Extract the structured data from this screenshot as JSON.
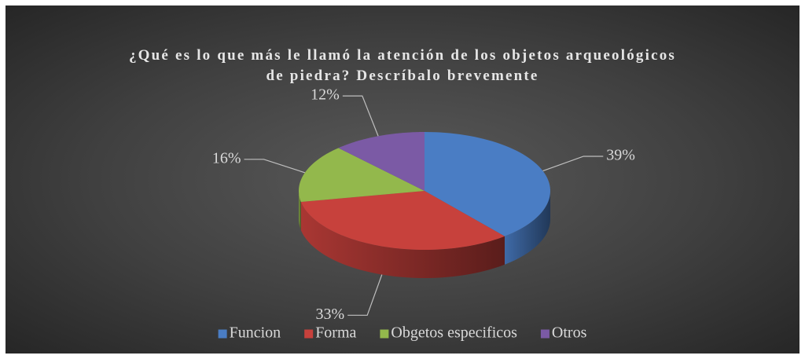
{
  "chart_data": {
    "type": "pie",
    "title": "¿Qué es lo que más le llamó la atención de los objetos arqueológicos de piedra? Descríbalo brevemente",
    "categories": [
      "Funcion",
      "Forma",
      "Obgetos especificos",
      "Otros"
    ],
    "values": [
      39,
      33,
      16,
      12
    ],
    "value_labels": [
      "39%",
      "33%",
      "16%",
      "12%"
    ],
    "colors": [
      "#4a7dc4",
      "#c7413c",
      "#93b84c",
      "#7b5aa5"
    ],
    "legend": "bottom"
  }
}
